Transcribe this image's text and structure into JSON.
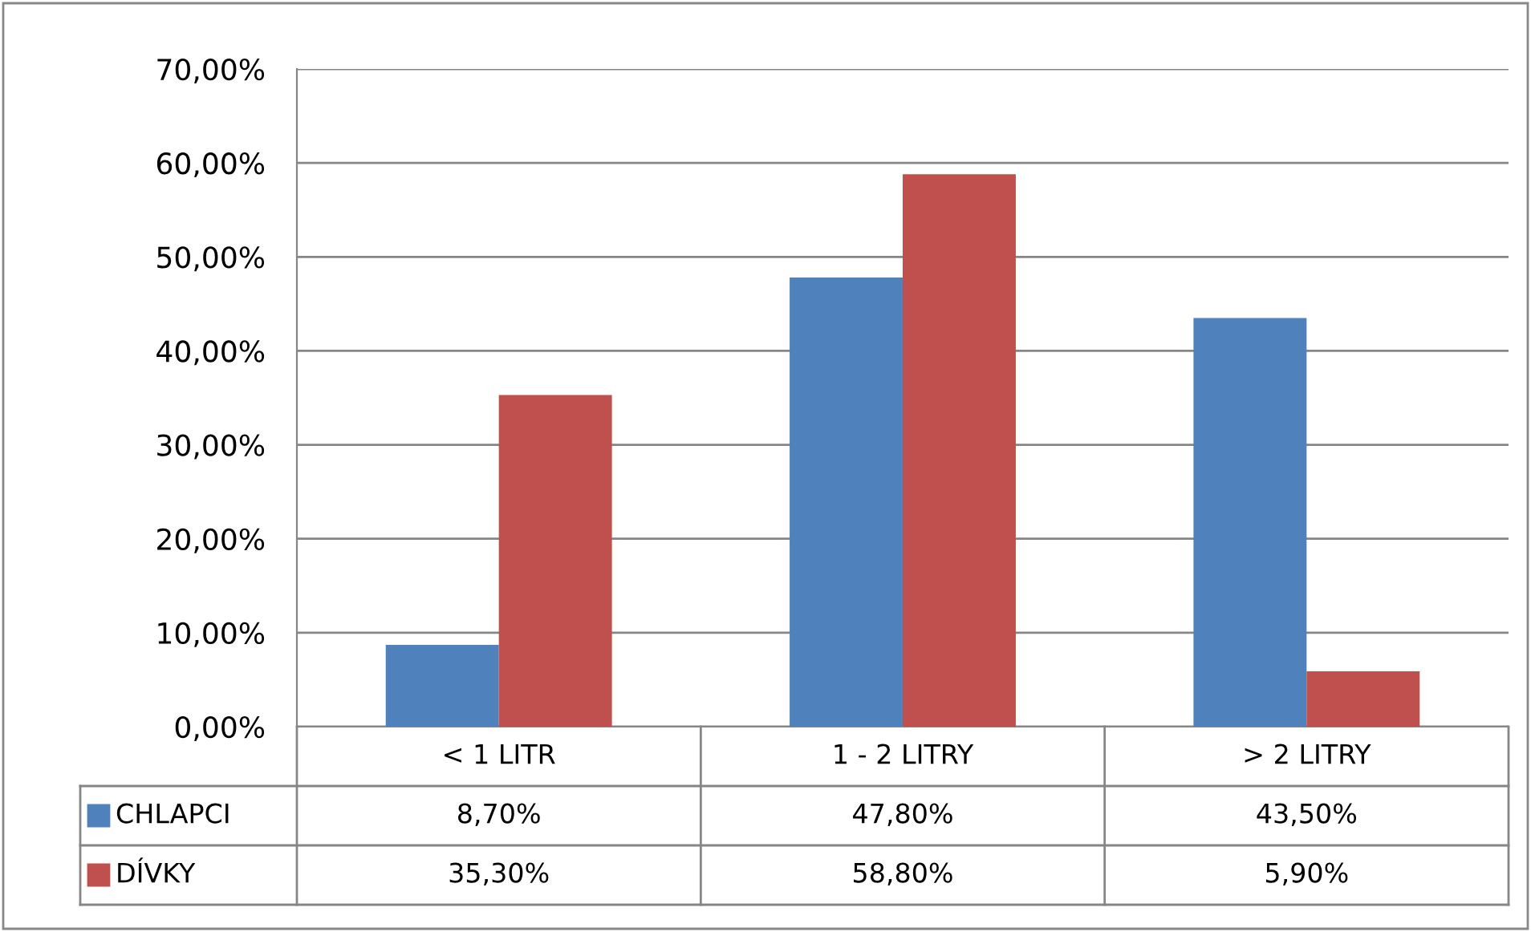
{
  "chart_data": {
    "type": "bar",
    "categories": [
      "< 1 LITR",
      "1 - 2 LITRY",
      "> 2 LITRY"
    ],
    "series": [
      {
        "name": "CHLAPCI",
        "color": "#4f81bd",
        "values": [
          8.7,
          47.8,
          43.5
        ],
        "value_labels": [
          "8,70%",
          "47,80%",
          "43,50%"
        ]
      },
      {
        "name": "DÍVKY",
        "color": "#c0504d",
        "values": [
          35.3,
          58.8,
          5.9
        ],
        "value_labels": [
          "35,30%",
          "58,80%",
          "5,90%"
        ]
      }
    ],
    "ylim": [
      0,
      70
    ],
    "yticks": [
      {
        "value": 0,
        "label": "0,00%"
      },
      {
        "value": 10,
        "label": "10,00%"
      },
      {
        "value": 20,
        "label": "20,00%"
      },
      {
        "value": 30,
        "label": "30,00%"
      },
      {
        "value": 40,
        "label": "40,00%"
      },
      {
        "value": 50,
        "label": "50,00%"
      },
      {
        "value": 60,
        "label": "60,00%"
      },
      {
        "value": 70,
        "label": "70,00%"
      }
    ],
    "grid": "y",
    "legend": "bottom"
  }
}
